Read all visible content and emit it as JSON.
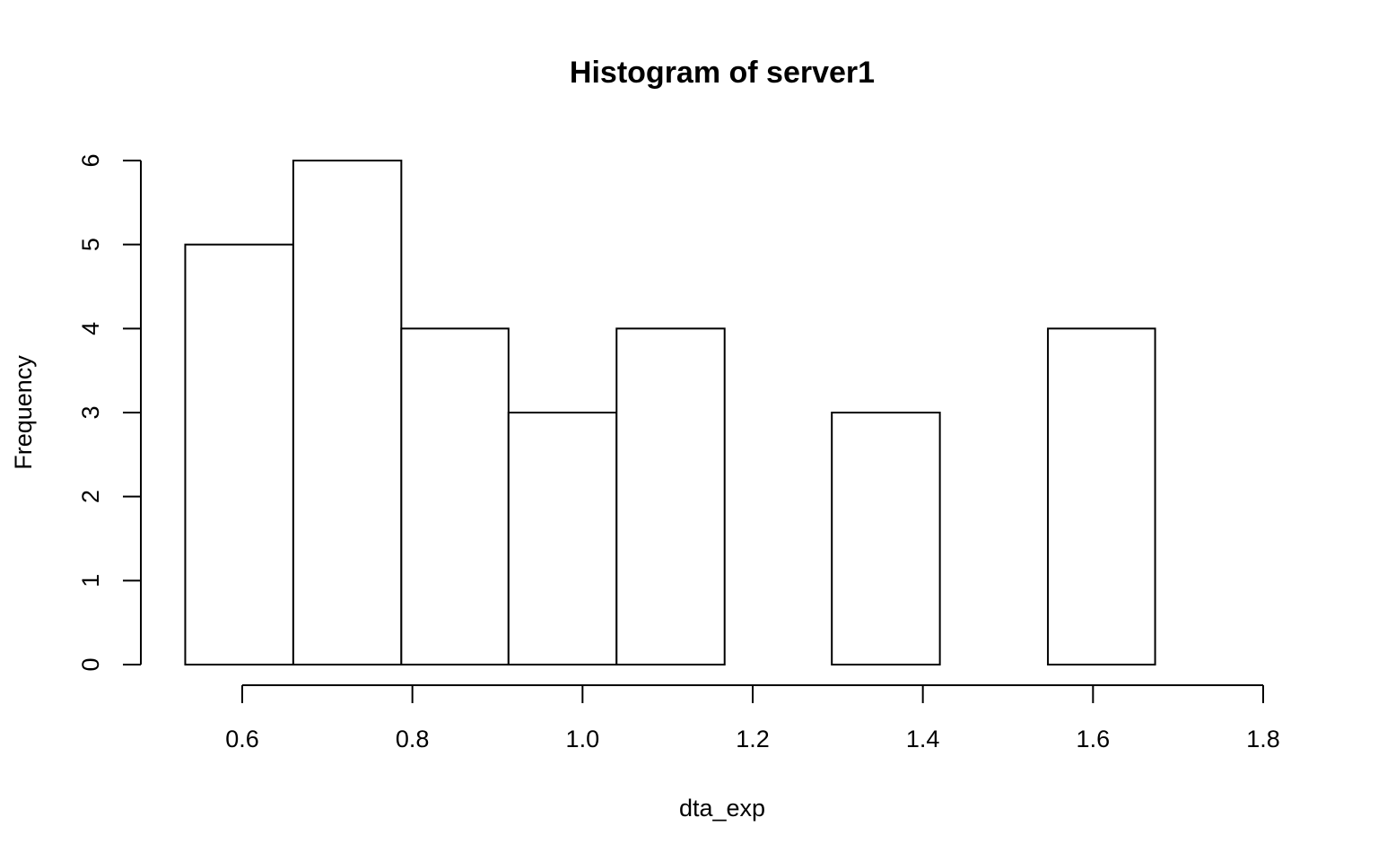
{
  "chart_data": {
    "type": "bar",
    "title": "Histogram of server1",
    "xlabel": "dta_exp",
    "ylabel": "Frequency",
    "bin_edges": [
      0.533,
      0.66,
      0.787,
      0.913,
      1.04,
      1.167,
      1.293,
      1.42,
      1.547,
      1.673,
      1.8
    ],
    "values": [
      5,
      6,
      4,
      3,
      4,
      0,
      3,
      0,
      4,
      0
    ],
    "xlim": [
      0.6,
      1.8
    ],
    "ylim": [
      0,
      6
    ],
    "xticks": [
      0.6,
      0.8,
      1.0,
      1.2,
      1.4,
      1.6,
      1.8
    ],
    "xtick_labels": [
      "0.6",
      "0.8",
      "1.0",
      "1.2",
      "1.4",
      "1.6",
      "1.8"
    ],
    "yticks": [
      0,
      1,
      2,
      3,
      4,
      5,
      6
    ],
    "ytick_labels": [
      "0",
      "1",
      "2",
      "3",
      "4",
      "5",
      "6"
    ],
    "grid": false,
    "bar_fill": "#ffffff",
    "bar_stroke": "#000000"
  }
}
